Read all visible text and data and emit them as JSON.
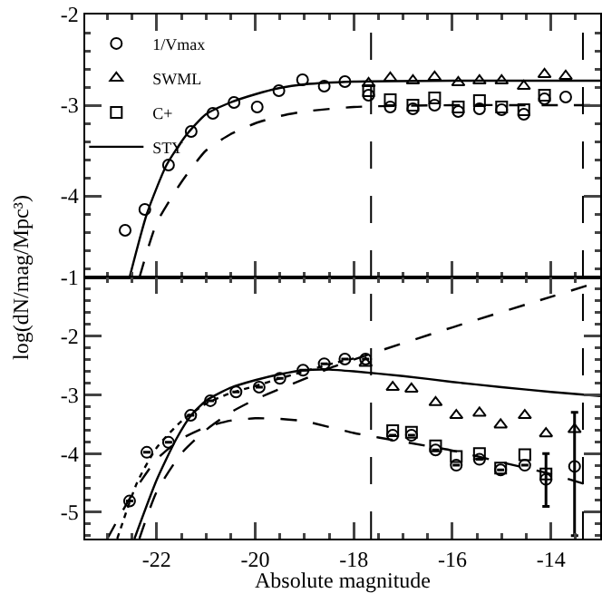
{
  "chart_data": [
    {
      "type": "scatter",
      "xlim": [
        -23.45,
        -13.0
      ],
      "xticks": [
        -22,
        -20,
        -18,
        -16,
        -14
      ],
      "ylim": [
        -4.9,
        -2
      ],
      "yticks": [
        -2,
        -3,
        -4
      ],
      "tick_labels": "y",
      "grid": false,
      "legend": "top left",
      "ref_lines": [
        {
          "axis": "x",
          "value": -17.65,
          "line_style": "dashed",
          "color": "#000000"
        },
        {
          "axis": "x",
          "value": -13.35,
          "line_style": "dashed",
          "color": "#000000"
        }
      ],
      "series": [
        {
          "name": "1/Vmax",
          "type": "scatter",
          "marker": "circle",
          "color": "#000000",
          "x": [
            -22.64,
            -22.24,
            -21.76,
            -21.3,
            -20.86,
            -20.43,
            -19.96,
            -19.52,
            -19.04,
            -18.6,
            -18.18,
            -17.7,
            -17.26,
            -16.8,
            -16.36,
            -15.88,
            -15.45,
            -15.0,
            -14.55,
            -14.13,
            -13.7
          ],
          "values": [
            -4.38,
            -4.15,
            -3.66,
            -3.29,
            -3.09,
            -2.97,
            -3.02,
            -2.84,
            -2.72,
            -2.79,
            -2.74,
            -2.89,
            -3.02,
            -3.04,
            -3.0,
            -3.07,
            -3.04,
            -3.05,
            -3.1,
            -2.93,
            -2.91
          ]
        },
        {
          "name": "SWML",
          "type": "scatter",
          "marker": "triangle",
          "color": "#000000",
          "x": [
            -17.7,
            -17.26,
            -16.8,
            -16.36,
            -15.88,
            -15.45,
            -15.0,
            -14.55,
            -14.13,
            -13.7
          ],
          "values": [
            -2.76,
            -2.7,
            -2.73,
            -2.69,
            -2.75,
            -2.73,
            -2.73,
            -2.79,
            -2.66,
            -2.68
          ]
        },
        {
          "name": "C+",
          "type": "scatter",
          "marker": "square",
          "color": "#000000",
          "x": [
            -17.7,
            -17.26,
            -16.8,
            -16.36,
            -15.88,
            -15.45,
            -15.0,
            -14.55,
            -14.13
          ],
          "values": [
            -2.84,
            -2.94,
            -3.0,
            -2.92,
            -3.02,
            -2.95,
            -3.02,
            -3.05,
            -2.89
          ]
        },
        {
          "name": "STY",
          "type": "line",
          "line_style": "solid",
          "color": "#000000",
          "x": [
            -22.55,
            -22.2,
            -21.8,
            -21.4,
            -21.0,
            -20.5,
            -20.0,
            -19.5,
            -19.0,
            -18.0,
            -16.0,
            -14.0,
            -13.0
          ],
          "values": [
            -4.9,
            -4.2,
            -3.66,
            -3.33,
            -3.1,
            -2.97,
            -2.88,
            -2.81,
            -2.77,
            -2.74,
            -2.73,
            -2.73,
            -2.73
          ]
        },
        {
          "type": "line",
          "line_style": "dashed",
          "color": "#000000",
          "x": [
            -22.35,
            -22.0,
            -21.5,
            -21.0,
            -20.5,
            -20.0,
            -19.5,
            -19.0,
            -18.0,
            -16.0,
            -14.0,
            -13.0
          ],
          "values": [
            -4.9,
            -4.3,
            -3.85,
            -3.5,
            -3.32,
            -3.2,
            -3.12,
            -3.07,
            -3.02,
            -3.0,
            -3.0,
            -3.0
          ]
        }
      ]
    },
    {
      "type": "scatter",
      "xlabel": "Absolute magnitude",
      "ylabel": "log(dN/mag/Mpc³)",
      "xlim": [
        -23.45,
        -13.0
      ],
      "xticks": [
        -22,
        -20,
        -18,
        -16,
        -14
      ],
      "ylim": [
        -5.45,
        -1
      ],
      "yticks": [
        -1,
        -2,
        -3,
        -4,
        -5
      ],
      "grid": false,
      "ref_lines": [
        {
          "axis": "x",
          "value": -17.65,
          "line_style": "dashed",
          "color": "#000000"
        },
        {
          "axis": "x",
          "value": -13.35,
          "line_style": "dashed",
          "color": "#000000"
        }
      ],
      "series": [
        {
          "type": "scatter",
          "marker": "circle",
          "color": "#000000",
          "x": [
            -22.55,
            -22.2,
            -21.76,
            -21.31,
            -20.91,
            -20.39,
            -19.92,
            -19.5,
            -19.03,
            -18.6,
            -18.18,
            -17.76,
            -17.21,
            -16.83,
            -16.34,
            -15.92,
            -15.45,
            -15.02,
            -14.53,
            -14.1,
            -13.52
          ],
          "values": [
            -4.81,
            -3.98,
            -3.81,
            -3.35,
            -3.1,
            -2.95,
            -2.87,
            -2.72,
            -2.58,
            -2.47,
            -2.39,
            -2.39,
            -3.69,
            -3.69,
            -3.94,
            -4.2,
            -4.1,
            -4.28,
            -4.2,
            -4.44,
            -4.22
          ],
          "errors": [
            null,
            null,
            null,
            null,
            null,
            null,
            null,
            null,
            null,
            null,
            null,
            null,
            null,
            null,
            null,
            null,
            null,
            null,
            null,
            [
              -4.9,
              -4.0
            ],
            [
              -5.4,
              -3.3
            ]
          ]
        },
        {
          "type": "scatter",
          "marker": "triangle",
          "color": "#000000",
          "x": [
            -17.76,
            -17.21,
            -16.83,
            -16.34,
            -15.92,
            -15.45,
            -15.02,
            -14.53,
            -14.1,
            -13.52
          ],
          "values": [
            -2.46,
            -2.87,
            -2.9,
            -3.13,
            -3.35,
            -3.31,
            -3.51,
            -3.35,
            -3.66,
            -3.59
          ]
        },
        {
          "type": "scatter",
          "marker": "square",
          "color": "#000000",
          "x": [
            -17.21,
            -16.83,
            -16.34,
            -15.92,
            -15.45,
            -15.02,
            -14.53,
            -14.1
          ],
          "values": [
            -3.61,
            -3.64,
            -3.87,
            -4.05,
            -4.0,
            -4.25,
            -4.02,
            -4.35
          ]
        },
        {
          "type": "line",
          "line_style": "solid",
          "color": "#000000",
          "x": [
            -22.45,
            -22.0,
            -21.6,
            -21.3,
            -21.0,
            -20.5,
            -20.0,
            -19.5,
            -19.0,
            -18.5,
            -18.0,
            -17.0,
            -16.0,
            -15.0,
            -14.0,
            -13.0
          ],
          "values": [
            -5.45,
            -4.45,
            -3.75,
            -3.35,
            -3.1,
            -2.88,
            -2.75,
            -2.65,
            -2.58,
            -2.57,
            -2.6,
            -2.68,
            -2.78,
            -2.87,
            -2.95,
            -3.02
          ]
        },
        {
          "type": "line",
          "line_style": "dashed",
          "color": "#000000",
          "x": [
            -23.0,
            -22.5,
            -22.0,
            -21.5,
            -21.0,
            -20.5,
            -20.0,
            -19.5,
            -19.0,
            -18.0,
            -17.0,
            -16.0,
            -15.0,
            -14.0,
            -13.0
          ],
          "values": [
            -5.45,
            -4.7,
            -4.1,
            -3.75,
            -3.55,
            -3.44,
            -3.4,
            -3.41,
            -3.45,
            -3.65,
            -3.8,
            -3.95,
            -4.15,
            -4.35,
            -4.6
          ]
        },
        {
          "type": "line",
          "line_style": "dashed",
          "color": "#000000",
          "x": [
            -22.35,
            -22.0,
            -21.5,
            -21.0,
            -20.5,
            -20.0,
            -19.5,
            -19.0,
            -18.5,
            -17.76,
            -16.0,
            -14.0,
            -13.0
          ],
          "values": [
            -5.45,
            -4.65,
            -4.0,
            -3.6,
            -3.3,
            -3.08,
            -2.9,
            -2.73,
            -2.55,
            -2.33,
            -1.85,
            -1.33,
            -1.07
          ]
        },
        {
          "type": "line",
          "line_style": "dotted",
          "color": "#000000",
          "x": [
            -22.8,
            -22.4,
            -22.0,
            -21.5,
            -21.0,
            -20.5,
            -20.0,
            -19.5,
            -19.0,
            -18.5,
            -18.0
          ],
          "values": [
            -5.45,
            -4.5,
            -3.9,
            -3.45,
            -3.15,
            -2.97,
            -2.85,
            -2.72,
            -2.6,
            -2.48,
            -2.38
          ]
        }
      ]
    }
  ]
}
